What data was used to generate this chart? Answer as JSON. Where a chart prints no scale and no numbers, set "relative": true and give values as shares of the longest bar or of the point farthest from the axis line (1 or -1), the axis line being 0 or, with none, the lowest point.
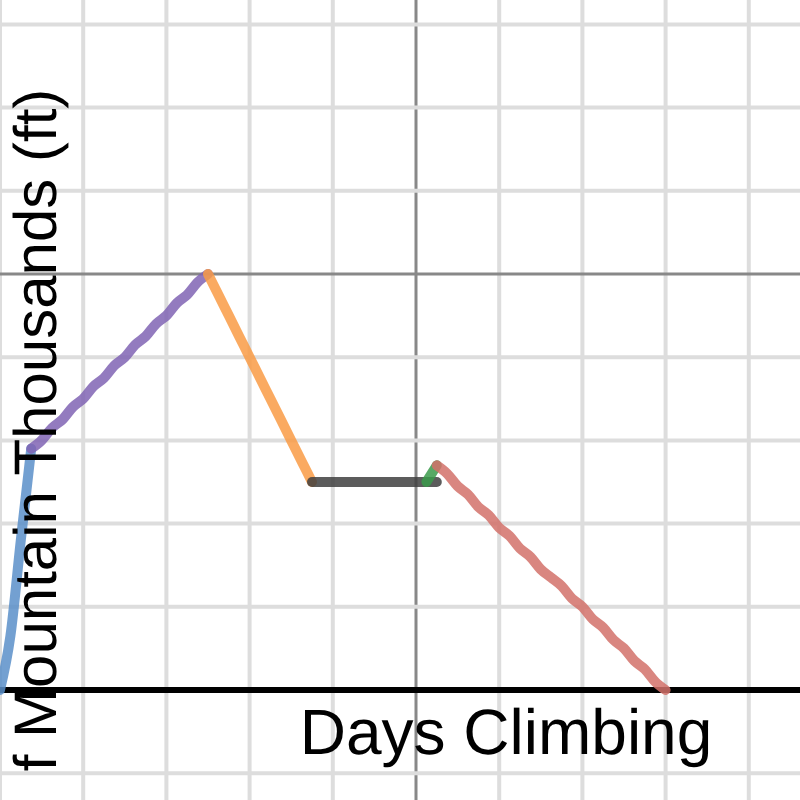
{
  "chart_data": {
    "type": "line",
    "relative": true,
    "xlabel": "Days Climbing",
    "ylabel": "f Mountain Thousands (ft)",
    "grid": true,
    "marker": "none",
    "line_style": "solid",
    "categories": [
      null,
      null,
      null,
      null,
      null,
      null,
      null,
      null,
      null,
      null,
      null,
      null,
      null,
      null,
      null,
      null,
      null,
      null,
      null,
      null,
      null,
      null,
      null,
      null,
      null,
      null,
      null,
      null,
      null,
      null,
      null,
      null,
      null,
      null,
      null,
      null,
      null,
      null,
      null,
      null,
      null,
      null,
      null,
      null,
      null,
      null,
      null,
      null,
      null,
      null,
      null,
      null,
      null,
      null,
      null,
      null,
      null,
      null,
      null,
      null,
      null,
      null,
      null,
      null,
      null
    ],
    "series": [
      {
        "color": "#5b8fc9",
        "values": [
          0,
          0.13,
          0.36,
          0.58,
          null,
          null,
          null,
          null,
          null,
          null,
          null,
          null,
          null,
          null,
          null,
          null,
          null,
          null,
          null,
          null,
          null,
          null,
          null,
          null,
          null,
          null,
          null,
          null,
          null,
          null,
          null,
          null,
          null,
          null,
          null,
          null,
          null,
          null,
          null,
          null,
          null,
          null,
          null,
          null,
          null,
          null,
          null,
          null,
          null,
          null,
          null,
          null,
          null,
          null,
          null,
          null,
          null,
          null,
          null,
          null,
          null,
          null,
          null,
          null,
          null
        ]
      },
      {
        "color": "#8064b4",
        "values": [
          null,
          null,
          null,
          0.58,
          0.6,
          0.63,
          0.65,
          0.68,
          0.7,
          0.73,
          0.75,
          0.78,
          0.8,
          0.83,
          0.85,
          0.88,
          0.9,
          0.93,
          0.95,
          0.98,
          1,
          null,
          null,
          null,
          null,
          null,
          null,
          null,
          null,
          null,
          null,
          null,
          null,
          null,
          null,
          null,
          null,
          null,
          null,
          null,
          null,
          null,
          null,
          null,
          null,
          null,
          null,
          null,
          null,
          null,
          null,
          null,
          null,
          null,
          null,
          null,
          null,
          null,
          null,
          null,
          null,
          null,
          null,
          null,
          null
        ]
      },
      {
        "color": "#f99b45",
        "values": [
          null,
          null,
          null,
          null,
          null,
          null,
          null,
          null,
          null,
          null,
          null,
          null,
          null,
          null,
          null,
          null,
          null,
          null,
          null,
          null,
          1,
          0.95,
          0.9,
          0.85,
          0.8,
          0.75,
          0.7,
          0.65,
          0.6,
          0.55,
          0.5,
          null,
          null,
          null,
          null,
          null,
          null,
          null,
          null,
          null,
          null,
          null,
          null,
          null,
          null,
          null,
          null,
          null,
          null,
          null,
          null,
          null,
          null,
          null,
          null,
          null,
          null,
          null,
          null,
          null,
          null,
          null,
          null,
          null,
          null
        ]
      },
      {
        "color": "#404040",
        "values": [
          null,
          null,
          null,
          null,
          null,
          null,
          null,
          null,
          null,
          null,
          null,
          null,
          null,
          null,
          null,
          null,
          null,
          null,
          null,
          null,
          null,
          null,
          null,
          null,
          null,
          null,
          null,
          null,
          null,
          null,
          0.5,
          0.5,
          0.5,
          0.5,
          0.5,
          0.5,
          0.5,
          0.5,
          0.5,
          0.5,
          0.5,
          0.5,
          0.5,
          null,
          null,
          null,
          null,
          null,
          null,
          null,
          null,
          null,
          null,
          null,
          null,
          null,
          null,
          null,
          null,
          null,
          null,
          null,
          null,
          null,
          null
        ]
      },
      {
        "color": "#3a9a4a",
        "values": [
          null,
          null,
          null,
          null,
          null,
          null,
          null,
          null,
          null,
          null,
          null,
          null,
          null,
          null,
          null,
          null,
          null,
          null,
          null,
          null,
          null,
          null,
          null,
          null,
          null,
          null,
          null,
          null,
          null,
          null,
          null,
          null,
          null,
          null,
          null,
          null,
          null,
          null,
          null,
          null,
          null,
          0.5,
          0.54,
          null,
          null,
          null,
          null,
          null,
          null,
          null,
          null,
          null,
          null,
          null,
          null,
          null,
          null,
          null,
          null,
          null,
          null,
          null,
          null,
          null,
          null
        ]
      },
      {
        "color": "#d2716a",
        "values": [
          null,
          null,
          null,
          null,
          null,
          null,
          null,
          null,
          null,
          null,
          null,
          null,
          null,
          null,
          null,
          null,
          null,
          null,
          null,
          null,
          null,
          null,
          null,
          null,
          null,
          null,
          null,
          null,
          null,
          null,
          null,
          null,
          null,
          null,
          null,
          null,
          null,
          null,
          null,
          null,
          null,
          null,
          0.54,
          0.52,
          0.49,
          0.47,
          0.44,
          0.42,
          0.39,
          0.37,
          0.34,
          0.32,
          0.29,
          0.27,
          0.25,
          0.22,
          0.2,
          0.17,
          0.15,
          0.12,
          0.1,
          0.07,
          0.05,
          0.02,
          0
        ]
      }
    ]
  }
}
